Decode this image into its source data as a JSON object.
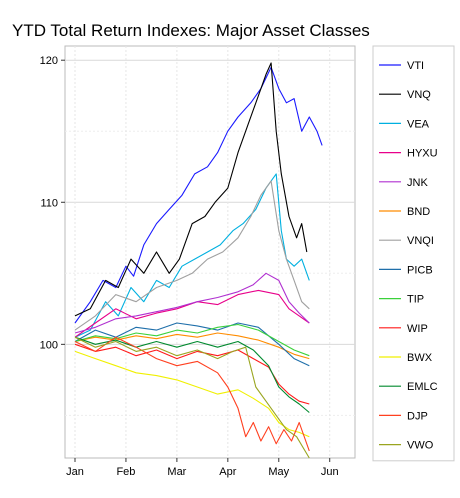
{
  "chart_data": {
    "type": "line",
    "title": "YTD Total Return Indexes: Major Asset Classes",
    "xlabel": "",
    "ylabel": "",
    "x_tick_labels": [
      "Jan",
      "Feb",
      "Mar",
      "Apr",
      "May",
      "Jun"
    ],
    "y_ticks": [
      100,
      110,
      120
    ],
    "ylim": [
      92,
      121
    ],
    "xlim": [
      0,
      5.3
    ],
    "grid": true,
    "legend_placement": "right",
    "series": [
      {
        "name": "VTI",
        "color": "#1a1aff",
        "values": [
          [
            0,
            101.5
          ],
          [
            0.3,
            103
          ],
          [
            0.55,
            104.5
          ],
          [
            0.8,
            104
          ],
          [
            1.0,
            105.5
          ],
          [
            1.15,
            104.8
          ],
          [
            1.35,
            107
          ],
          [
            1.6,
            108.5
          ],
          [
            1.85,
            109.5
          ],
          [
            2.1,
            110.5
          ],
          [
            2.35,
            112
          ],
          [
            2.6,
            112.5
          ],
          [
            2.8,
            113.5
          ],
          [
            3.0,
            115
          ],
          [
            3.2,
            116
          ],
          [
            3.45,
            117
          ],
          [
            3.65,
            118
          ],
          [
            3.85,
            119.5
          ],
          [
            4.0,
            118
          ],
          [
            4.15,
            117
          ],
          [
            4.3,
            117.3
          ],
          [
            4.45,
            115
          ],
          [
            4.6,
            116
          ],
          [
            4.75,
            115
          ],
          [
            4.85,
            114
          ]
        ]
      },
      {
        "name": "VNQ",
        "color": "#000000",
        "values": [
          [
            0,
            102
          ],
          [
            0.3,
            102.5
          ],
          [
            0.6,
            104.5
          ],
          [
            0.85,
            104
          ],
          [
            1.1,
            106
          ],
          [
            1.35,
            105
          ],
          [
            1.6,
            106.5
          ],
          [
            1.85,
            105
          ],
          [
            2.05,
            106
          ],
          [
            2.3,
            108.5
          ],
          [
            2.55,
            109
          ],
          [
            2.75,
            110
          ],
          [
            3.0,
            111
          ],
          [
            3.2,
            113.5
          ],
          [
            3.4,
            115.5
          ],
          [
            3.6,
            117.5
          ],
          [
            3.75,
            119
          ],
          [
            3.85,
            119.8
          ],
          [
            3.95,
            115
          ],
          [
            4.05,
            112
          ],
          [
            4.2,
            109
          ],
          [
            4.35,
            107.5
          ],
          [
            4.45,
            108.5
          ],
          [
            4.55,
            106.5
          ]
        ]
      },
      {
        "name": "VEA",
        "color": "#00b0e0",
        "values": [
          [
            0,
            100.5
          ],
          [
            0.3,
            101
          ],
          [
            0.6,
            103
          ],
          [
            0.85,
            102
          ],
          [
            1.1,
            104
          ],
          [
            1.35,
            103
          ],
          [
            1.6,
            104.5
          ],
          [
            1.85,
            104
          ],
          [
            2.1,
            105.5
          ],
          [
            2.35,
            106
          ],
          [
            2.6,
            106.5
          ],
          [
            2.85,
            107
          ],
          [
            3.1,
            108
          ],
          [
            3.3,
            108.5
          ],
          [
            3.55,
            109.5
          ],
          [
            3.75,
            111
          ],
          [
            3.95,
            112
          ],
          [
            4.05,
            108
          ],
          [
            4.15,
            106
          ],
          [
            4.3,
            105.5
          ],
          [
            4.45,
            106
          ],
          [
            4.6,
            104.5
          ]
        ]
      },
      {
        "name": "HYXU",
        "color": "#e8008a",
        "values": [
          [
            0,
            100.5
          ],
          [
            0.4,
            101.5
          ],
          [
            0.8,
            102.5
          ],
          [
            1.2,
            101.8
          ],
          [
            1.6,
            102.2
          ],
          [
            2.0,
            102.5
          ],
          [
            2.4,
            103
          ],
          [
            2.8,
            102.8
          ],
          [
            3.2,
            103.5
          ],
          [
            3.6,
            103.8
          ],
          [
            4.0,
            103.5
          ],
          [
            4.2,
            102.5
          ],
          [
            4.4,
            102
          ],
          [
            4.6,
            101.5
          ]
        ]
      },
      {
        "name": "JNK",
        "color": "#b030d0",
        "values": [
          [
            0,
            100.8
          ],
          [
            0.4,
            101.2
          ],
          [
            0.8,
            101.8
          ],
          [
            1.2,
            102
          ],
          [
            1.6,
            102.3
          ],
          [
            2.0,
            102.6
          ],
          [
            2.4,
            103
          ],
          [
            2.8,
            103.3
          ],
          [
            3.2,
            103.7
          ],
          [
            3.5,
            104.2
          ],
          [
            3.75,
            105
          ],
          [
            4.0,
            104.5
          ],
          [
            4.2,
            103
          ],
          [
            4.4,
            102.2
          ],
          [
            4.6,
            101.5
          ]
        ]
      },
      {
        "name": "BND",
        "color": "#ff8c00",
        "values": [
          [
            0,
            100.2
          ],
          [
            0.4,
            100.5
          ],
          [
            0.8,
            100.3
          ],
          [
            1.2,
            100.6
          ],
          [
            1.6,
            100.4
          ],
          [
            2.0,
            100.7
          ],
          [
            2.4,
            100.5
          ],
          [
            2.8,
            100.8
          ],
          [
            3.2,
            100.6
          ],
          [
            3.6,
            100.3
          ],
          [
            4.0,
            99.8
          ],
          [
            4.3,
            99.3
          ],
          [
            4.6,
            99
          ]
        ]
      },
      {
        "name": "VNQI",
        "color": "#a0a0a0",
        "values": [
          [
            0,
            101
          ],
          [
            0.4,
            102
          ],
          [
            0.8,
            103.5
          ],
          [
            1.2,
            103
          ],
          [
            1.6,
            104
          ],
          [
            2.0,
            104.5
          ],
          [
            2.3,
            105
          ],
          [
            2.6,
            106
          ],
          [
            2.9,
            106.5
          ],
          [
            3.2,
            107.5
          ],
          [
            3.45,
            109
          ],
          [
            3.65,
            110.5
          ],
          [
            3.85,
            111.5
          ],
          [
            4.0,
            108
          ],
          [
            4.15,
            106
          ],
          [
            4.3,
            104.5
          ],
          [
            4.45,
            103
          ],
          [
            4.6,
            102.5
          ]
        ]
      },
      {
        "name": "PICB",
        "color": "#1f6faa",
        "values": [
          [
            0,
            100.2
          ],
          [
            0.4,
            101
          ],
          [
            0.8,
            100.5
          ],
          [
            1.2,
            101.2
          ],
          [
            1.6,
            101
          ],
          [
            2.0,
            101.5
          ],
          [
            2.4,
            101.3
          ],
          [
            2.8,
            101
          ],
          [
            3.2,
            101.5
          ],
          [
            3.6,
            101.2
          ],
          [
            4.0,
            100
          ],
          [
            4.3,
            99
          ],
          [
            4.6,
            98.5
          ]
        ]
      },
      {
        "name": "TIP",
        "color": "#3bd13b",
        "values": [
          [
            0,
            100.2
          ],
          [
            0.4,
            100.6
          ],
          [
            0.8,
            100.4
          ],
          [
            1.2,
            100.8
          ],
          [
            1.6,
            100.6
          ],
          [
            2.0,
            101
          ],
          [
            2.4,
            100.8
          ],
          [
            2.8,
            101.2
          ],
          [
            3.2,
            101.4
          ],
          [
            3.6,
            101
          ],
          [
            4.0,
            100.2
          ],
          [
            4.3,
            99.6
          ],
          [
            4.6,
            99.2
          ]
        ]
      },
      {
        "name": "WIP",
        "color": "#ff1a1a",
        "values": [
          [
            0,
            100
          ],
          [
            0.4,
            99.5
          ],
          [
            0.8,
            99.8
          ],
          [
            1.2,
            99.2
          ],
          [
            1.6,
            99.6
          ],
          [
            2.0,
            99
          ],
          [
            2.4,
            99.5
          ],
          [
            2.8,
            99.2
          ],
          [
            3.2,
            99.6
          ],
          [
            3.5,
            99
          ],
          [
            3.8,
            98.4
          ],
          [
            4.0,
            97.2
          ],
          [
            4.2,
            96.5
          ],
          [
            4.4,
            96
          ],
          [
            4.6,
            95.8
          ]
        ]
      },
      {
        "name": "BWX",
        "color": "#f0f000",
        "values": [
          [
            0,
            99.5
          ],
          [
            0.4,
            99
          ],
          [
            0.8,
            98.5
          ],
          [
            1.2,
            98
          ],
          [
            1.6,
            97.8
          ],
          [
            2.0,
            97.5
          ],
          [
            2.4,
            97
          ],
          [
            2.8,
            96.5
          ],
          [
            3.2,
            96.8
          ],
          [
            3.5,
            96.2
          ],
          [
            3.8,
            95.5
          ],
          [
            4.0,
            94.5
          ],
          [
            4.2,
            94
          ],
          [
            4.4,
            93.8
          ],
          [
            4.6,
            93.5
          ]
        ]
      },
      {
        "name": "EMLC",
        "color": "#008a2e",
        "values": [
          [
            0,
            100.5
          ],
          [
            0.4,
            100
          ],
          [
            0.8,
            100.3
          ],
          [
            1.2,
            99.8
          ],
          [
            1.6,
            100.2
          ],
          [
            2.0,
            99.8
          ],
          [
            2.4,
            100.2
          ],
          [
            2.8,
            99.8
          ],
          [
            3.2,
            100.2
          ],
          [
            3.5,
            99.6
          ],
          [
            3.8,
            98.5
          ],
          [
            4.0,
            97
          ],
          [
            4.2,
            96.3
          ],
          [
            4.4,
            95.8
          ],
          [
            4.6,
            95.2
          ]
        ]
      },
      {
        "name": "DJP",
        "color": "#ff4020",
        "values": [
          [
            0,
            100.2
          ],
          [
            0.4,
            99.5
          ],
          [
            0.8,
            100.5
          ],
          [
            1.2,
            99.8
          ],
          [
            1.6,
            99
          ],
          [
            2.0,
            98.5
          ],
          [
            2.4,
            98.8
          ],
          [
            2.8,
            98
          ],
          [
            3.0,
            97
          ],
          [
            3.2,
            95.5
          ],
          [
            3.35,
            93.5
          ],
          [
            3.5,
            94.5
          ],
          [
            3.65,
            93.2
          ],
          [
            3.8,
            94.2
          ],
          [
            3.95,
            93
          ],
          [
            4.1,
            94
          ],
          [
            4.25,
            93.2
          ],
          [
            4.4,
            94.5
          ],
          [
            4.6,
            92.5
          ]
        ]
      },
      {
        "name": "VWO",
        "color": "#9aa520",
        "values": [
          [
            0,
            100.5
          ],
          [
            0.4,
            99.8
          ],
          [
            0.8,
            100.2
          ],
          [
            1.2,
            99.5
          ],
          [
            1.6,
            99.8
          ],
          [
            2.0,
            99.2
          ],
          [
            2.4,
            99.6
          ],
          [
            2.8,
            99
          ],
          [
            3.1,
            99.5
          ],
          [
            3.35,
            99.8
          ],
          [
            3.55,
            97
          ],
          [
            3.75,
            96
          ],
          [
            3.95,
            95
          ],
          [
            4.15,
            94
          ],
          [
            4.35,
            93.5
          ],
          [
            4.6,
            92
          ]
        ]
      }
    ]
  }
}
